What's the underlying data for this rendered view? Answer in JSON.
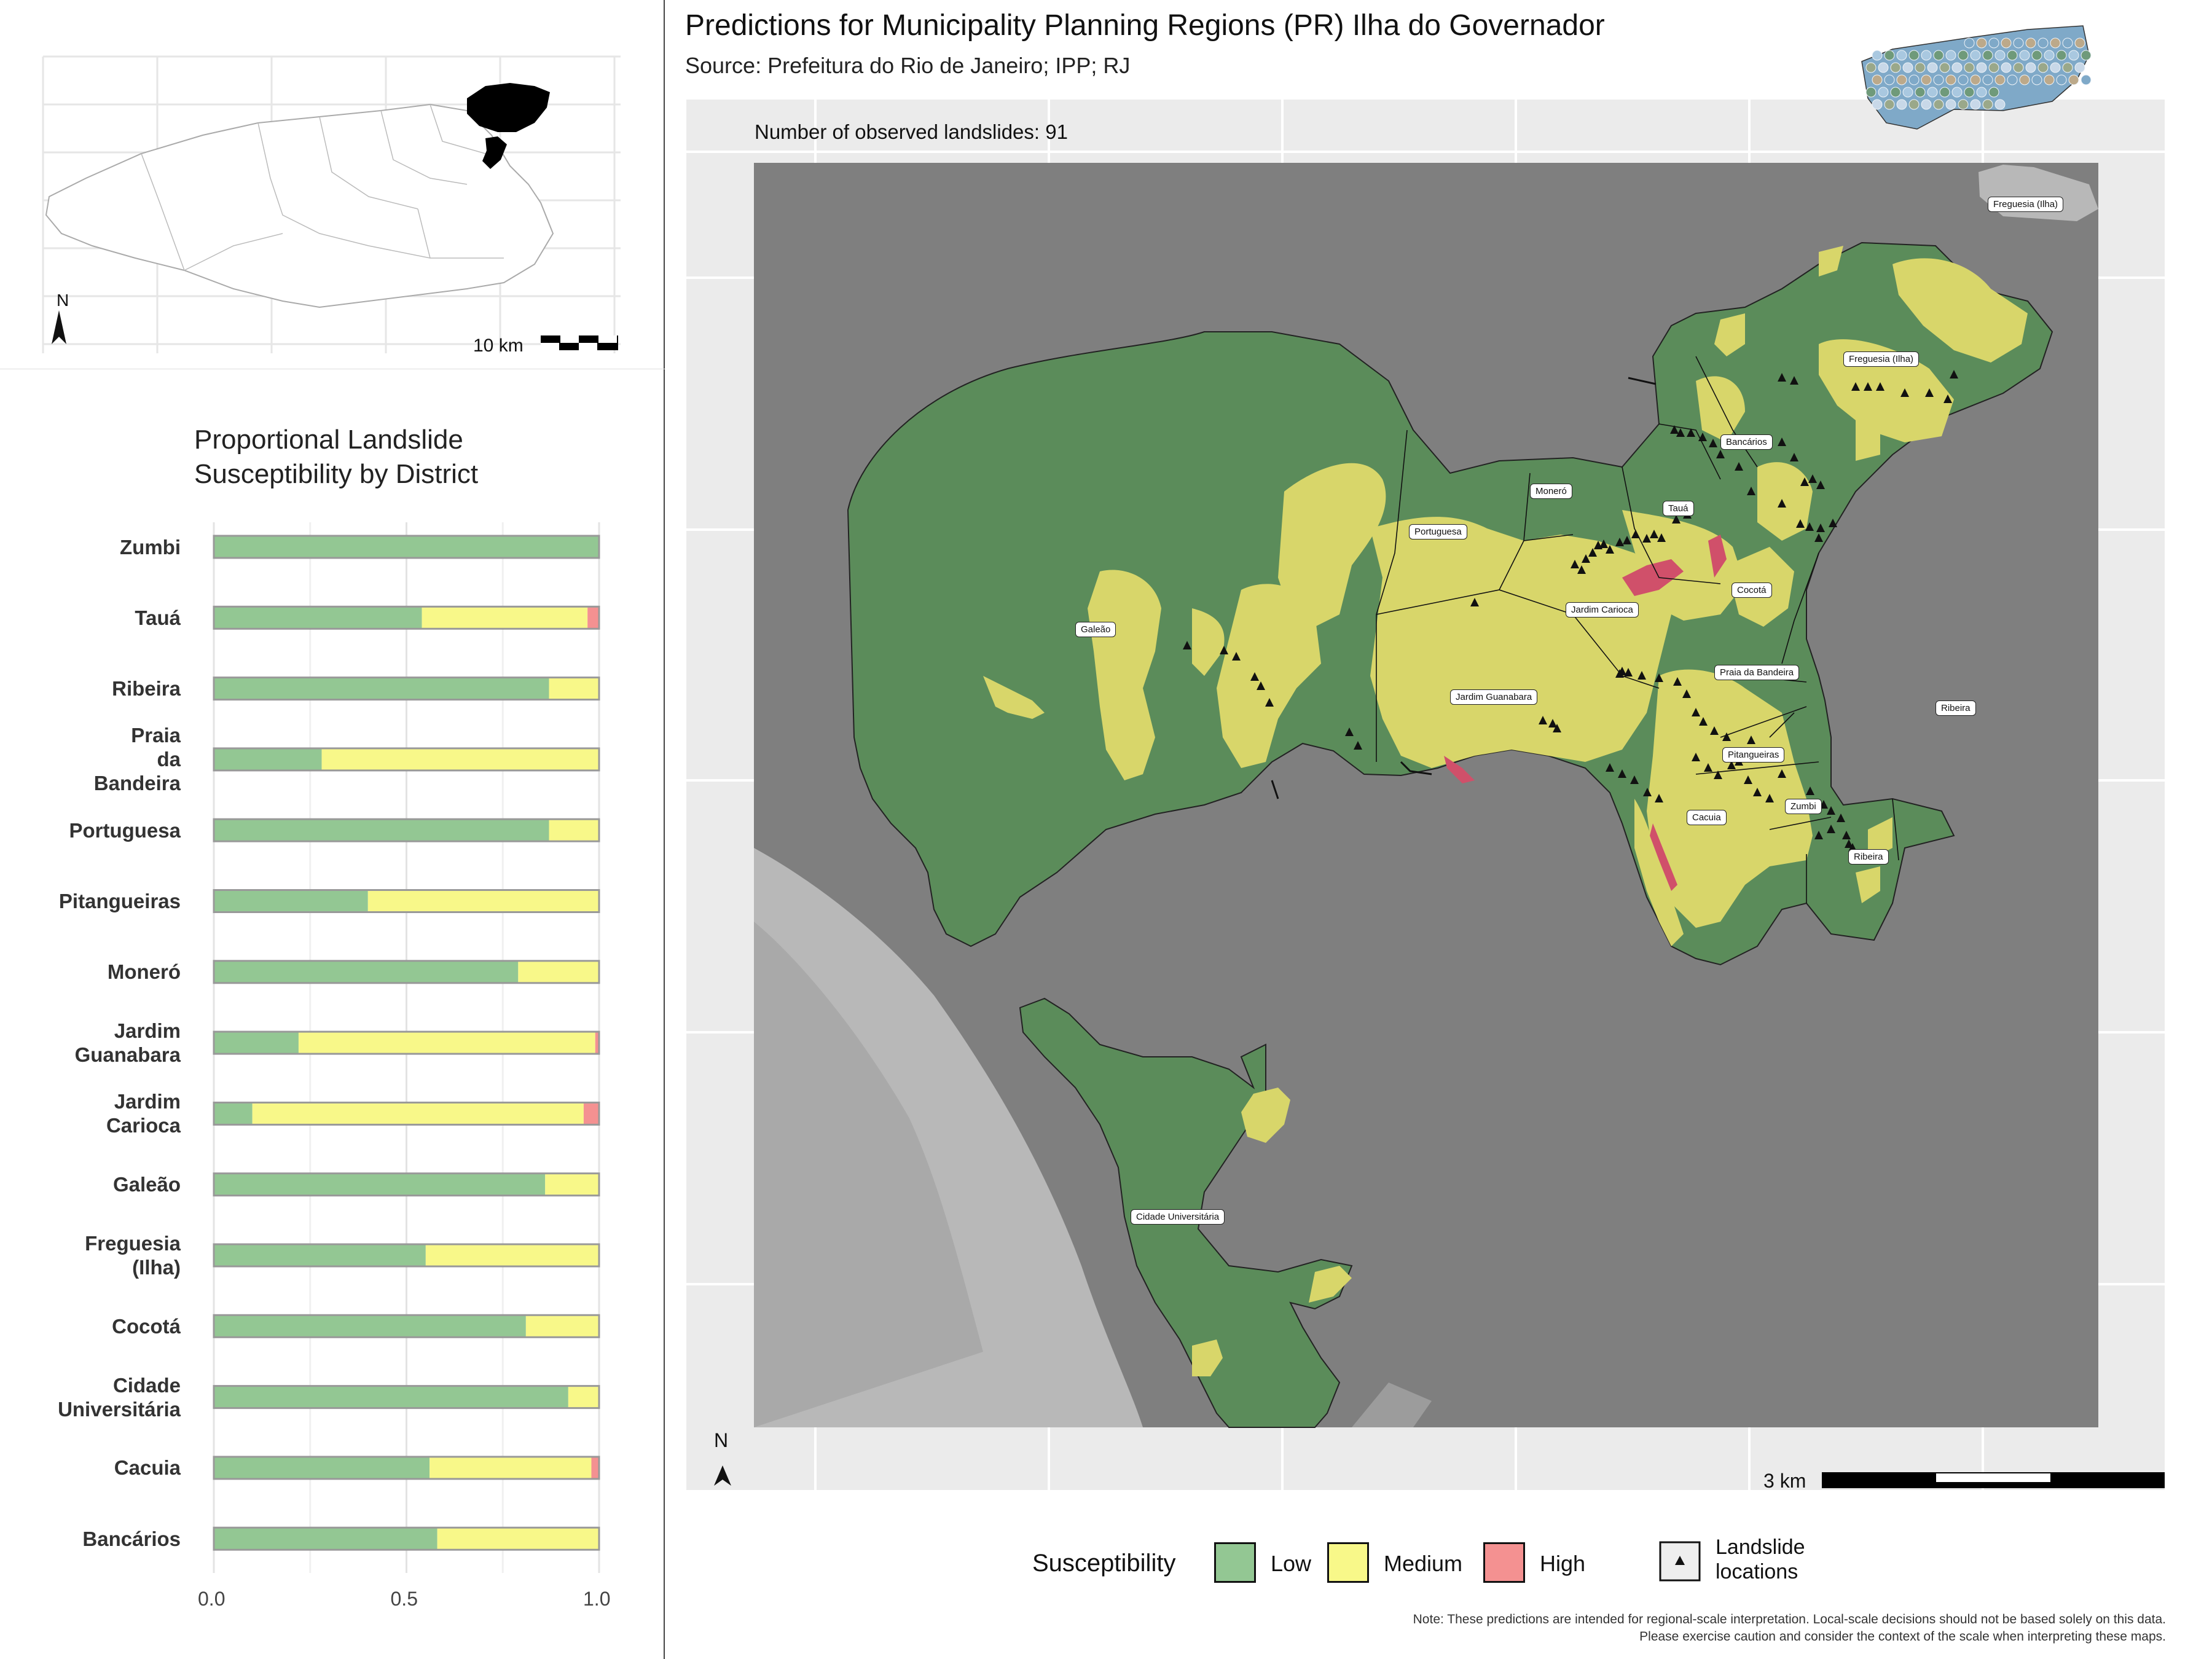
{
  "title": "Predictions for Municipality Planning Regions (PR) Ilha do Governador",
  "subtitle": "Source: Prefeitura do Rio de Janeiro; IPP; RJ",
  "observed_count_text": "Number of observed landslides: 91",
  "inset": {
    "north_label": "N",
    "scale_label": "10 km"
  },
  "main_map": {
    "north_label": "N",
    "scale_label": "3 km"
  },
  "map_labels": [
    "Freguesia (Ilha)",
    "Freguesia (Ilha)",
    "Bancários",
    "Moneró",
    "Tauá",
    "Portuguesa",
    "Cocotá",
    "Galeão",
    "Jardim Carioca",
    "Praia da Bandeira",
    "Jardim Guanabara",
    "Ribeira",
    "Pitangueiras",
    "Zumbi",
    "Cacuia",
    "Ribeira",
    "Cidade Universitária"
  ],
  "chart_data": {
    "type": "bar",
    "stacked": true,
    "orientation": "horizontal",
    "title": "Proportional Landslide\nSusceptibility by District",
    "title_lines": [
      "Proportional Landslide",
      "Susceptibility by District"
    ],
    "categories": [
      "Zumbi",
      "Tauá",
      "Ribeira",
      "Praia da Bandeira",
      "Portuguesa",
      "Pitangueiras",
      "Moneró",
      "Jardim Guanabara",
      "Jardim Carioca",
      "Galeão",
      "Freguesia (Ilha)",
      "Cocotá",
      "Cidade Universitária",
      "Cacuia",
      "Bancários"
    ],
    "category_lines": [
      [
        "Zumbi"
      ],
      [
        "Tauá"
      ],
      [
        "Ribeira"
      ],
      [
        "Praia",
        "da",
        "Bandeira"
      ],
      [
        "Portuguesa"
      ],
      [
        "Pitangueiras"
      ],
      [
        "Moneró"
      ],
      [
        "Jardim",
        "Guanabara"
      ],
      [
        "Jardim",
        "Carioca"
      ],
      [
        "Galeão"
      ],
      [
        "Freguesia",
        "(Ilha)"
      ],
      [
        "Cocotá"
      ],
      [
        "Cidade",
        "Universitária"
      ],
      [
        "Cacuia"
      ],
      [
        "Bancários"
      ]
    ],
    "series": [
      {
        "name": "Low",
        "color": "#93c793",
        "values": [
          1.0,
          0.54,
          0.87,
          0.28,
          0.87,
          0.4,
          0.79,
          0.22,
          0.1,
          0.86,
          0.55,
          0.81,
          0.92,
          0.56,
          0.58
        ]
      },
      {
        "name": "Medium",
        "color": "#f8f889",
        "values": [
          0.0,
          0.43,
          0.13,
          0.72,
          0.13,
          0.6,
          0.21,
          0.77,
          0.86,
          0.14,
          0.45,
          0.19,
          0.08,
          0.42,
          0.42
        ]
      },
      {
        "name": "High",
        "color": "#f49191",
        "values": [
          0.0,
          0.03,
          0.0,
          0.0,
          0.0,
          0.0,
          0.0,
          0.01,
          0.04,
          0.0,
          0.0,
          0.0,
          0.0,
          0.02,
          0.0
        ]
      }
    ],
    "xlim": [
      0,
      1
    ],
    "xticks": [
      "0.0",
      "0.5",
      "1.0"
    ],
    "grid": true
  },
  "legend": {
    "title": "Susceptibility",
    "items": [
      {
        "label": "Low",
        "color": "#93c793"
      },
      {
        "label": "Medium",
        "color": "#f8f889"
      },
      {
        "label": "High",
        "color": "#f49191"
      }
    ],
    "landslide_label_lines": [
      "Landslide",
      "locations"
    ]
  },
  "note_lines": [
    "Note: These predictions are intended for regional-scale interpretation. Local-scale decisions should not be based solely on this data.",
    "Please exercise caution and consider the context of the scale when interpreting these maps."
  ],
  "colors": {
    "water": "#7f7f7f",
    "low": "#5b8c5a",
    "medium": "#d8d66a",
    "high": "#d0506a",
    "panel_bg": "#ebebeb"
  }
}
